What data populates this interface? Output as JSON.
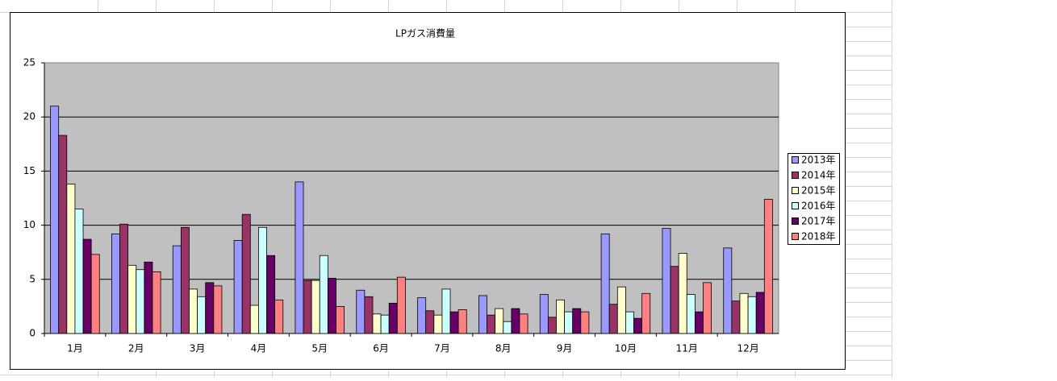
{
  "chart_data": {
    "type": "bar",
    "title": "LPガス消費量",
    "categories": [
      "1月",
      "2月",
      "3月",
      "4月",
      "5月",
      "6月",
      "7月",
      "8月",
      "9月",
      "10月",
      "11月",
      "12月"
    ],
    "series": [
      {
        "name": "2013年",
        "color": "#9999ff",
        "values": [
          21.0,
          9.2,
          8.1,
          8.6,
          14.0,
          4.0,
          3.3,
          3.5,
          3.6,
          9.2,
          9.7,
          7.9
        ]
      },
      {
        "name": "2014年",
        "color": "#993366",
        "values": [
          18.3,
          10.1,
          9.8,
          11.0,
          4.9,
          3.4,
          2.1,
          1.7,
          1.5,
          2.7,
          6.2,
          3.0
        ]
      },
      {
        "name": "2015年",
        "color": "#ffffcc",
        "values": [
          13.8,
          6.3,
          4.1,
          2.6,
          4.9,
          1.8,
          1.7,
          2.3,
          3.1,
          4.3,
          7.4,
          3.7
        ]
      },
      {
        "name": "2016年",
        "color": "#ccffff",
        "values": [
          11.5,
          5.9,
          3.4,
          9.8,
          7.2,
          1.7,
          4.1,
          1.1,
          2.0,
          2.0,
          3.6,
          3.4
        ]
      },
      {
        "name": "2017年",
        "color": "#660066",
        "values": [
          8.7,
          6.6,
          4.7,
          7.2,
          5.1,
          2.8,
          2.0,
          2.3,
          2.3,
          1.4,
          2.0,
          3.8
        ]
      },
      {
        "name": "2018年",
        "color": "#ff8080",
        "values": [
          7.3,
          5.7,
          4.4,
          3.1,
          2.5,
          5.2,
          2.2,
          1.8,
          2.0,
          3.7,
          4.7,
          12.4
        ]
      }
    ],
    "ylim": [
      0,
      25
    ],
    "yticks": [
      0,
      5,
      10,
      15,
      20,
      25
    ],
    "grid": true,
    "legend": "right"
  }
}
